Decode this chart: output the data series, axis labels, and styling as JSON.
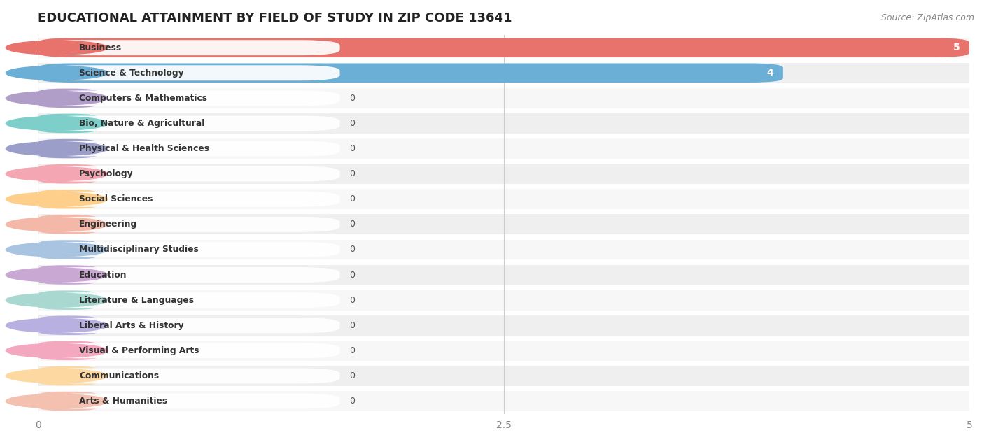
{
  "title": "EDUCATIONAL ATTAINMENT BY FIELD OF STUDY IN ZIP CODE 13641",
  "source": "Source: ZipAtlas.com",
  "categories": [
    "Business",
    "Science & Technology",
    "Computers & Mathematics",
    "Bio, Nature & Agricultural",
    "Physical & Health Sciences",
    "Psychology",
    "Social Sciences",
    "Engineering",
    "Multidisciplinary Studies",
    "Education",
    "Literature & Languages",
    "Liberal Arts & History",
    "Visual & Performing Arts",
    "Communications",
    "Arts & Humanities"
  ],
  "values": [
    5,
    4,
    0,
    0,
    0,
    0,
    0,
    0,
    0,
    0,
    0,
    0,
    0,
    0,
    0
  ],
  "bar_colors": [
    "#E8736C",
    "#6BAED6",
    "#B09EC9",
    "#7ECECA",
    "#9B9EC9",
    "#F4A7B2",
    "#FDCF8B",
    "#F4B8A8",
    "#A8C4E0",
    "#C9A8D4",
    "#A8D8D0",
    "#B8B0E0",
    "#F4A8C0",
    "#FDD8A0",
    "#F4C0B0"
  ],
  "dot_colors": [
    "#E8736C",
    "#6BAED6",
    "#B09EC9",
    "#7ECECA",
    "#9B9EC9",
    "#F4A7B2",
    "#FDCF8B",
    "#F4B8A8",
    "#A8C4E0",
    "#C9A8D4",
    "#A8D8D0",
    "#B8B0E0",
    "#F4A8C0",
    "#FDD8A0",
    "#F4C0B0"
  ],
  "xlim": [
    0,
    5
  ],
  "xticks": [
    0,
    2.5,
    5
  ],
  "title_fontsize": 13,
  "source_fontsize": 9,
  "row_colors": [
    "#f7f7f7",
    "#efefef"
  ]
}
